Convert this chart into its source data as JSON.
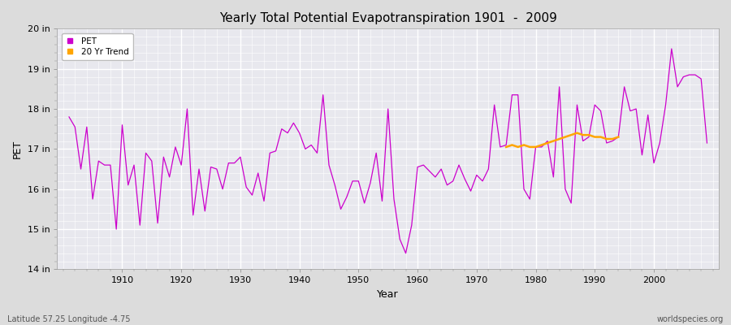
{
  "title": "Yearly Total Potential Evapotranspiration 1901  -  2009",
  "xlabel": "Year",
  "ylabel": "PET",
  "subtitle_lat_lon": "Latitude 57.25 Longitude -4.75",
  "watermark": "worldspecies.org",
  "ylim": [
    14,
    20
  ],
  "ytick_labels": [
    "14 in",
    "15 in",
    "16 in",
    "17 in",
    "18 in",
    "19 in",
    "20 in"
  ],
  "ytick_values": [
    14,
    15,
    16,
    17,
    18,
    19,
    20
  ],
  "xlim": [
    1899,
    2011
  ],
  "xtick_values": [
    1910,
    1920,
    1930,
    1940,
    1950,
    1960,
    1970,
    1980,
    1990,
    2000
  ],
  "pet_color": "#CC00CC",
  "trend_color": "#FFA500",
  "fig_bg_color": "#DCDCDC",
  "plot_bg_color": "#E8E8EE",
  "pet_data": {
    "1901": 17.8,
    "1902": 17.55,
    "1903": 16.5,
    "1904": 17.55,
    "1905": 15.75,
    "1906": 16.7,
    "1907": 16.6,
    "1908": 16.6,
    "1909": 15.0,
    "1910": 17.6,
    "1911": 16.1,
    "1912": 16.6,
    "1913": 15.1,
    "1914": 16.9,
    "1915": 16.7,
    "1916": 15.15,
    "1917": 16.8,
    "1918": 16.3,
    "1919": 17.05,
    "1920": 16.6,
    "1921": 18.0,
    "1922": 15.35,
    "1923": 16.5,
    "1924": 15.45,
    "1925": 16.55,
    "1926": 16.5,
    "1927": 16.0,
    "1928": 16.65,
    "1929": 16.65,
    "1930": 16.8,
    "1931": 16.05,
    "1932": 15.85,
    "1933": 16.4,
    "1934": 15.7,
    "1935": 16.9,
    "1936": 16.95,
    "1937": 17.5,
    "1938": 17.4,
    "1939": 17.65,
    "1940": 17.4,
    "1941": 17.0,
    "1942": 17.1,
    "1943": 16.9,
    "1944": 18.35,
    "1945": 16.6,
    "1946": 16.1,
    "1947": 15.5,
    "1948": 15.8,
    "1949": 16.2,
    "1950": 16.2,
    "1951": 15.65,
    "1952": 16.15,
    "1953": 16.9,
    "1954": 15.7,
    "1955": 18.0,
    "1956": 15.75,
    "1957": 14.75,
    "1958": 14.4,
    "1959": 15.1,
    "1960": 16.55,
    "1961": 16.6,
    "1962": 16.45,
    "1963": 16.3,
    "1964": 16.5,
    "1965": 16.1,
    "1966": 16.2,
    "1967": 16.6,
    "1968": 16.25,
    "1969": 15.95,
    "1970": 16.35,
    "1971": 16.2,
    "1972": 16.5,
    "1973": 18.1,
    "1974": 17.05,
    "1975": 17.1,
    "1976": 18.35,
    "1977": 18.35,
    "1978": 16.0,
    "1979": 15.75,
    "1980": 17.05,
    "1981": 17.05,
    "1982": 17.2,
    "1983": 16.3,
    "1984": 18.55,
    "1985": 16.0,
    "1986": 15.65,
    "1987": 18.1,
    "1988": 17.2,
    "1989": 17.3,
    "1990": 18.1,
    "1991": 17.95,
    "1992": 17.15,
    "1993": 17.2,
    "1994": 17.3,
    "1995": 18.55,
    "1996": 17.95,
    "1997": 18.0,
    "1998": 16.85,
    "1999": 17.85,
    "2000": 16.65,
    "2001": 17.15,
    "2002": 18.1,
    "2003": 19.5,
    "2004": 18.55,
    "2005": 18.8,
    "2006": 18.85,
    "2007": 18.85,
    "2008": 18.75,
    "2009": 17.15
  },
  "trend_data": {
    "1975": 17.05,
    "1976": 17.1,
    "1977": 17.05,
    "1978": 17.1,
    "1979": 17.05,
    "1980": 17.05,
    "1981": 17.1,
    "1982": 17.15,
    "1983": 17.2,
    "1984": 17.25,
    "1985": 17.3,
    "1986": 17.35,
    "1987": 17.4,
    "1988": 17.35,
    "1989": 17.35,
    "1990": 17.3,
    "1991": 17.3,
    "1992": 17.25,
    "1993": 17.25,
    "1994": 17.3
  }
}
